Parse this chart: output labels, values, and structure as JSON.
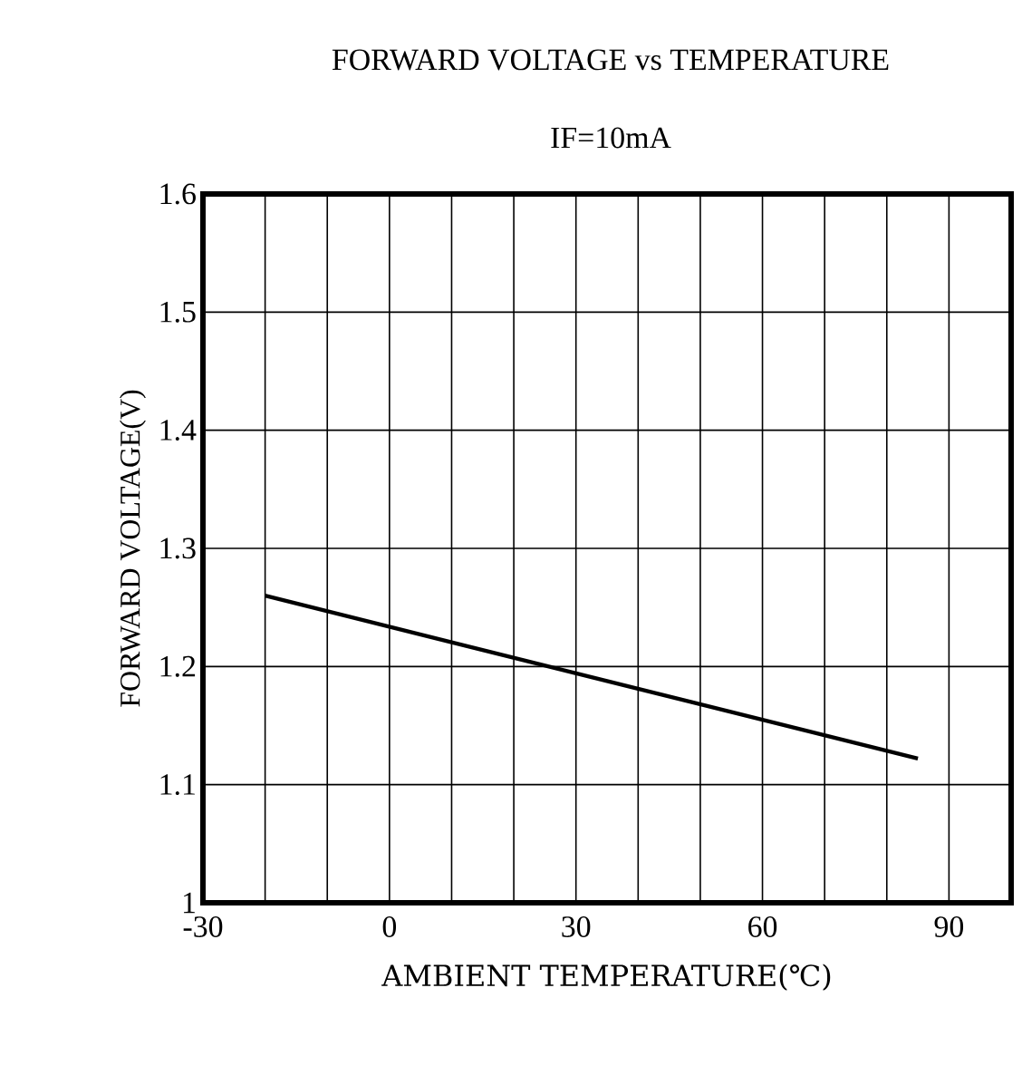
{
  "chart_data": {
    "type": "line",
    "title": "FORWARD VOLTAGE vs TEMPERATURE",
    "subtitle": "IF=10mA",
    "xlabel": "AMBIENT TEMPERATURE(℃)",
    "ylabel": "FORWARD VOLTAGE(V)",
    "xlim": [
      -30,
      100
    ],
    "xticks": [
      -30,
      {
        "value": -20,
        "label": null
      },
      {
        "value": -10,
        "label": null
      },
      0,
      {
        "value": 10,
        "label": null
      },
      {
        "value": 20,
        "label": null
      },
      30,
      {
        "value": 40,
        "label": null
      },
      {
        "value": 50,
        "label": null
      },
      60,
      {
        "value": 70,
        "label": null
      },
      {
        "value": 80,
        "label": null
      },
      90
    ],
    "ylim": [
      1,
      1.6
    ],
    "yticks": [
      1,
      1.1,
      1.2,
      1.3,
      1.4,
      1.5,
      1.6
    ],
    "grid": true,
    "series": [
      {
        "x": [
          -20,
          85
        ],
        "values": [
          1.26,
          1.122
        ],
        "color": "#000000"
      }
    ]
  }
}
